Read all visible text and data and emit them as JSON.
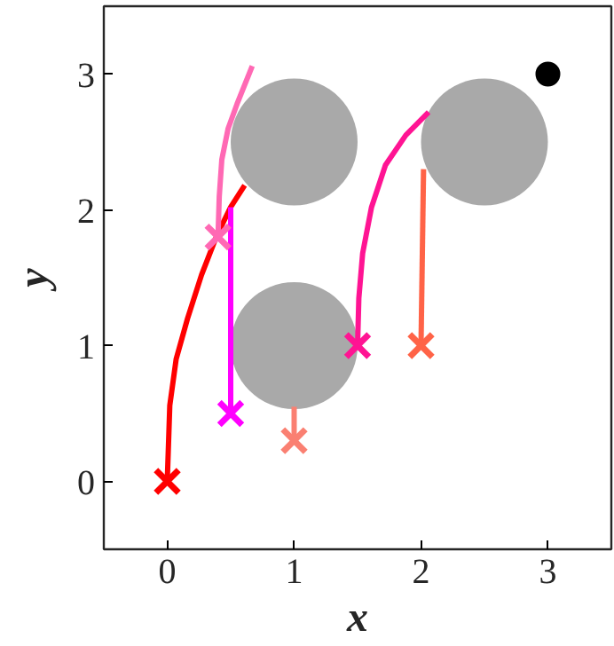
{
  "chart_data": {
    "type": "line",
    "xlabel": "x",
    "ylabel": "y",
    "xlim": [
      -0.5,
      3.5
    ],
    "ylim": [
      -0.5,
      3.5
    ],
    "xticks": [
      0,
      1,
      2,
      3
    ],
    "yticks": [
      0,
      1,
      2,
      3
    ],
    "grid": false,
    "line_style": "solid",
    "series": [
      {
        "type": "bubble",
        "color": "#a9a9a9",
        "x": [
          1,
          2.5,
          1
        ],
        "values": [
          2.5,
          2.5,
          1
        ],
        "sizes": [
          1,
          1,
          1
        ]
      },
      {
        "color": "#ff0000",
        "x": [
          0,
          0.02,
          0.07,
          0.16,
          0.27,
          0.39,
          0.5,
          0.61
        ],
        "values": [
          0,
          0.56,
          0.9,
          1.2,
          1.52,
          1.81,
          2.02,
          2.18
        ]
      },
      {
        "color": "#ff00ff",
        "x": [
          0.5,
          0.5
        ],
        "values": [
          0.5,
          2.02
        ]
      },
      {
        "color": "#fa8072",
        "x": [
          1,
          1
        ],
        "values": [
          0.3,
          0.55
        ]
      },
      {
        "color": "#ff69b4",
        "x": [
          0.4,
          0.41,
          0.43,
          0.48,
          0.55,
          0.67
        ],
        "values": [
          1.8,
          2.1,
          2.37,
          2.6,
          2.78,
          3.06
        ]
      },
      {
        "color": "#ff1493",
        "x": [
          1.5,
          1.51,
          1.54,
          1.61,
          1.72,
          1.88,
          2.06
        ],
        "values": [
          1,
          1.35,
          1.68,
          2.02,
          2.33,
          2.55,
          2.72
        ]
      },
      {
        "color": "#ff6347",
        "x": [
          2,
          2.02
        ],
        "values": [
          1,
          2.3
        ]
      },
      {
        "type": "scatter",
        "marker": "cross",
        "colors": [
          "#ff0000",
          "#ff00ff",
          "#fa8072",
          "#ff69b4",
          "#ff1493",
          "#ff6347"
        ],
        "x": [
          0,
          0.5,
          1,
          0.4,
          1.5,
          2
        ],
        "values": [
          0,
          0.5,
          0.3,
          1.8,
          1,
          1
        ]
      },
      {
        "type": "scatter",
        "marker": "circle",
        "color": "#000000",
        "x": [
          3
        ],
        "values": [
          3
        ]
      }
    ]
  }
}
